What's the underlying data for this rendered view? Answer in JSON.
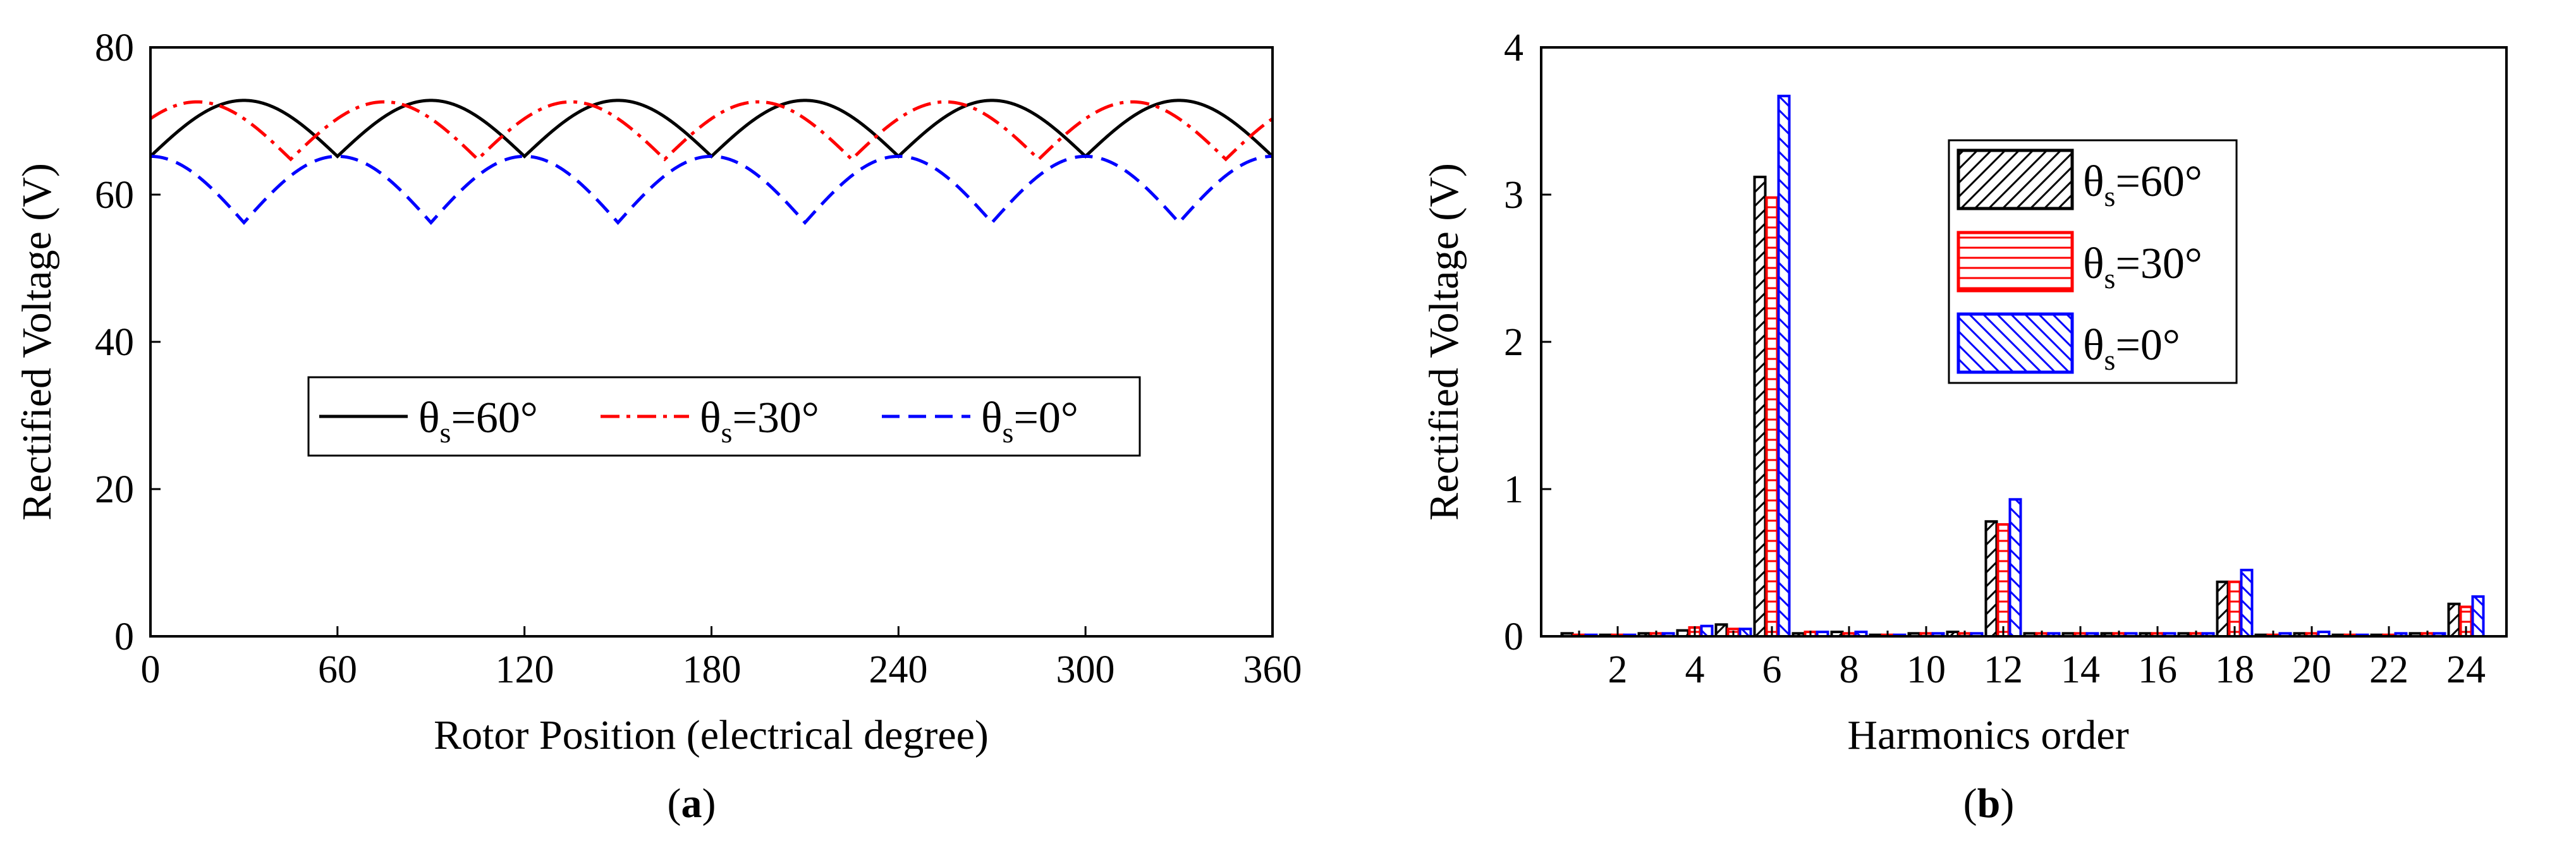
{
  "chart_data": [
    {
      "type": "line",
      "caption": "a",
      "xlabel": "Rotor Position (electrical degree)",
      "ylabel": "Rectified Voltage (V)",
      "xlim": [
        0,
        360
      ],
      "ylim": [
        0,
        80
      ],
      "xticks": [
        "0",
        "60",
        "120",
        "180",
        "240",
        "300",
        "360"
      ],
      "yticks": [
        "0",
        "20",
        "40",
        "60",
        "80"
      ],
      "legend_position": "center",
      "series": [
        {
          "name": "θs=60°",
          "symbol": "θ",
          "sub": "s",
          "rest": "=60°",
          "color": "#000000",
          "style": "solid",
          "period": 60,
          "phase": 0,
          "peak": 72.8,
          "min": 65.2
        },
        {
          "name": "θs=30°",
          "symbol": "θ",
          "sub": "s",
          "rest": "=30°",
          "color": "#ff0000",
          "style": "dashdot",
          "period": 60,
          "phase": 45,
          "peak": 72.6,
          "min": 64.8
        },
        {
          "name": "θs=0°",
          "symbol": "θ",
          "sub": "s",
          "rest": "=0°",
          "color": "#0000ff",
          "style": "dashed",
          "period": 60,
          "phase": 30,
          "peak": 65.2,
          "min": 56.2
        }
      ]
    },
    {
      "type": "bar",
      "caption": "b",
      "xlabel": "Harmonics order",
      "ylabel": "Rectified Voltage (V)",
      "ylim": [
        0,
        4
      ],
      "yticks": [
        "0",
        "1",
        "2",
        "3",
        "4"
      ],
      "xticks": [
        "2",
        "4",
        "6",
        "8",
        "10",
        "12",
        "14",
        "16",
        "18",
        "20",
        "22",
        "24"
      ],
      "categories": [
        1,
        2,
        3,
        4,
        5,
        6,
        7,
        8,
        9,
        10,
        11,
        12,
        13,
        14,
        15,
        16,
        17,
        18,
        19,
        20,
        21,
        22,
        23,
        24
      ],
      "legend_position": "top-right",
      "series": [
        {
          "name": "θs=60°",
          "symbol": "θ",
          "sub": "s",
          "rest": "=60°",
          "color": "#000000",
          "hatch": "diagonal-up",
          "values": [
            0.02,
            0.01,
            0.02,
            0.04,
            0.08,
            3.12,
            0.02,
            0.03,
            0.01,
            0.02,
            0.03,
            0.78,
            0.02,
            0.02,
            0.02,
            0.02,
            0.02,
            0.37,
            0.01,
            0.02,
            0.01,
            0.01,
            0.02,
            0.22
          ]
        },
        {
          "name": "θs=30°",
          "symbol": "θ",
          "sub": "s",
          "rest": "=30°",
          "color": "#ff0000",
          "hatch": "horizontal",
          "values": [
            0.01,
            0.01,
            0.02,
            0.06,
            0.05,
            2.98,
            0.03,
            0.02,
            0.01,
            0.02,
            0.02,
            0.76,
            0.02,
            0.02,
            0.02,
            0.02,
            0.02,
            0.37,
            0.01,
            0.02,
            0.01,
            0.01,
            0.02,
            0.2
          ]
        },
        {
          "name": "θs=0°",
          "symbol": "θ",
          "sub": "s",
          "rest": "=0°",
          "color": "#0000ff",
          "hatch": "diagonal-down",
          "values": [
            0.01,
            0.01,
            0.02,
            0.07,
            0.05,
            3.67,
            0.03,
            0.03,
            0.01,
            0.02,
            0.02,
            0.93,
            0.02,
            0.02,
            0.02,
            0.02,
            0.02,
            0.45,
            0.02,
            0.03,
            0.01,
            0.02,
            0.02,
            0.27
          ]
        }
      ]
    }
  ]
}
